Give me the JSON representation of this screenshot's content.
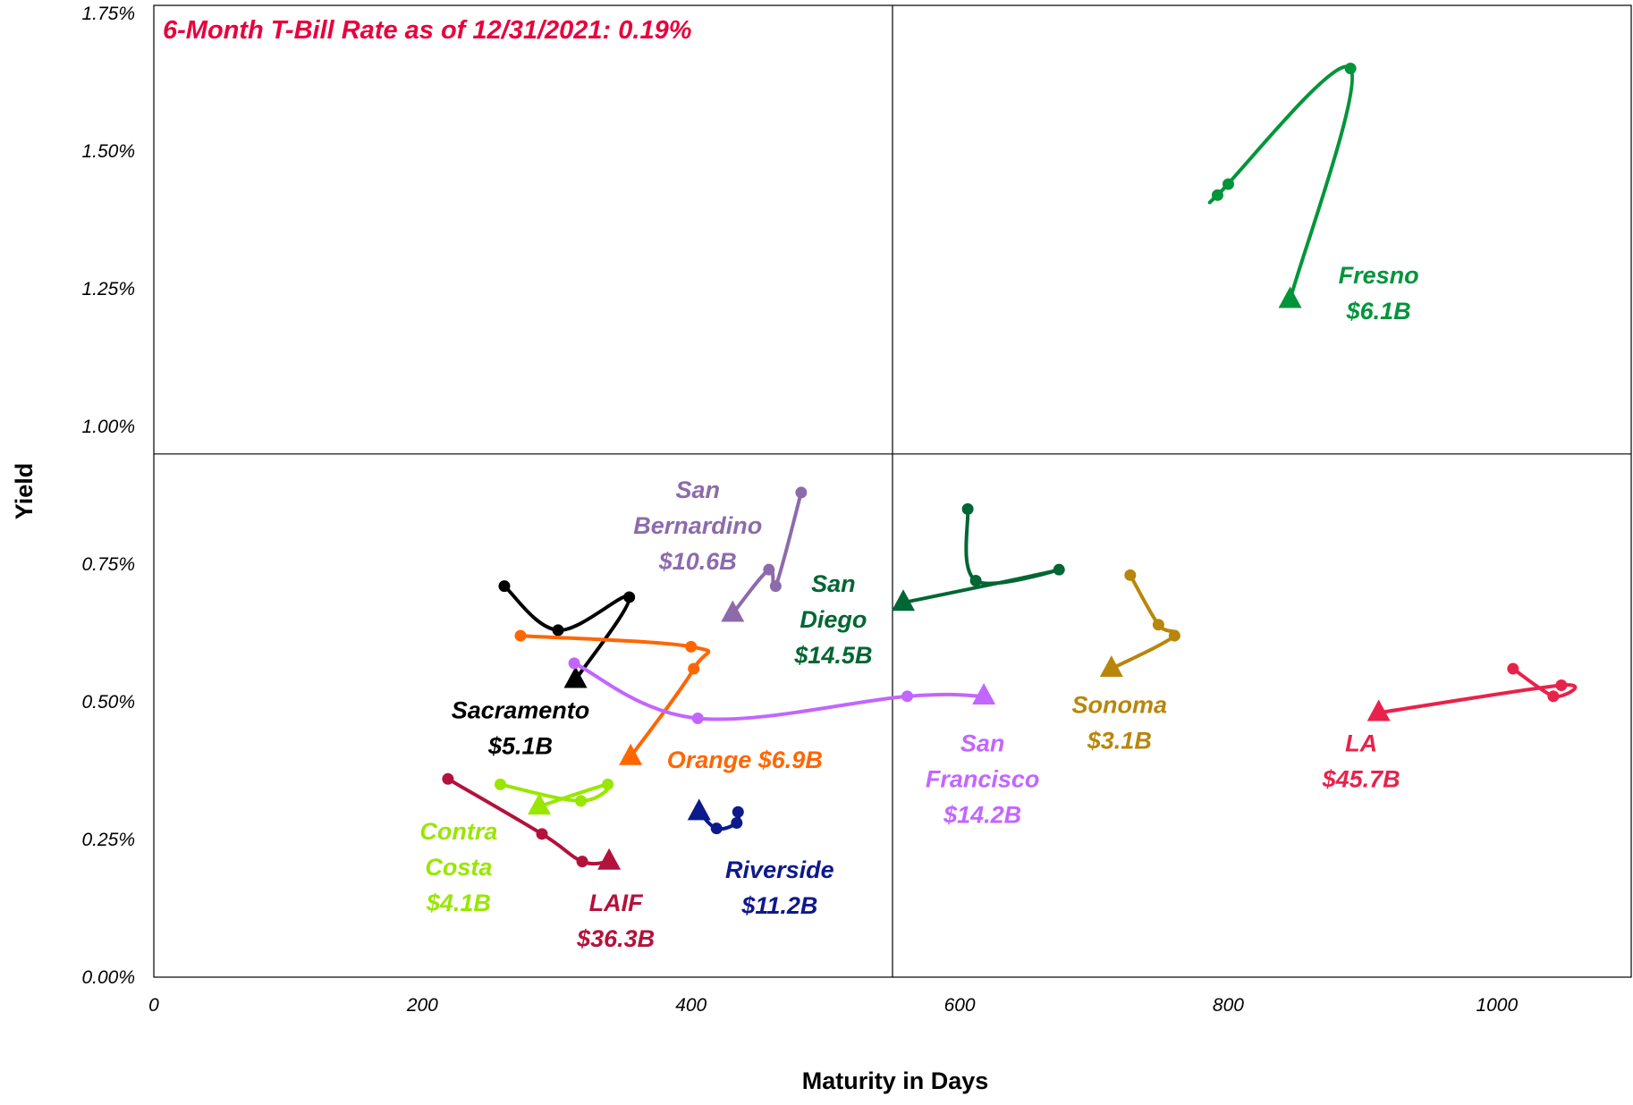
{
  "chart_data": {
    "type": "scatter",
    "title": "",
    "annotation": "6-Month T-Bill Rate as of 12/31/2021: 0.19%",
    "annotation_color": "#e8003c",
    "xlabel": "Maturity in Days",
    "ylabel": "Yield",
    "xlim": [
      0,
      1100
    ],
    "ylim": [
      0,
      1.75
    ],
    "x_ticks": [
      0,
      200,
      400,
      600,
      800,
      1000
    ],
    "x_tick_labels": [
      "0",
      "200",
      "400",
      "600",
      "800",
      "1000"
    ],
    "y_ticks": [
      0,
      0.25,
      0.5,
      0.75,
      1.0,
      1.25,
      1.5,
      1.75
    ],
    "y_tick_labels": [
      "0.00%",
      "0.25%",
      "0.50%",
      "0.75%",
      "1.00%",
      "1.25%",
      "1.50%",
      "1.75%"
    ],
    "quadrant_lines": {
      "x": 550,
      "y": 0.95
    },
    "grid": false,
    "legend": "none",
    "series": [
      {
        "name": "Fresno",
        "amount": "$6.1B",
        "color": "#00953a",
        "label_lines": [
          "Fresno",
          "$6.1B"
        ],
        "label_at": [
          912,
          1.26
        ],
        "points": [
          [
            800,
            1.44
          ],
          [
            792,
            1.42
          ],
          [
            891,
            1.65
          ],
          [
            846,
            1.23
          ]
        ]
      },
      {
        "name": "San Bernardino",
        "amount": "$10.6B",
        "color": "#8c6bab",
        "label_lines": [
          "San",
          "Bernardino",
          "$10.6B"
        ],
        "label_at": [
          405,
          0.87
        ],
        "points": [
          [
            482,
            0.88
          ],
          [
            463,
            0.71
          ],
          [
            458,
            0.74
          ],
          [
            431,
            0.66
          ]
        ]
      },
      {
        "name": "San Diego",
        "amount": "$14.5B",
        "color": "#006633",
        "label_lines": [
          "San",
          "Diego",
          "$14.5B"
        ],
        "label_at": [
          506,
          0.7
        ],
        "points": [
          [
            606,
            0.85
          ],
          [
            612,
            0.72
          ],
          [
            674,
            0.74
          ],
          [
            558,
            0.68
          ]
        ]
      },
      {
        "name": "Sonoma",
        "amount": "$3.1B",
        "color": "#b8860b",
        "label_lines": [
          "Sonoma",
          "$3.1B"
        ],
        "label_at": [
          719,
          0.48
        ],
        "points": [
          [
            727,
            0.73
          ],
          [
            748,
            0.64
          ],
          [
            760,
            0.62
          ],
          [
            713,
            0.56
          ]
        ]
      },
      {
        "name": "LA",
        "amount": "$45.7B",
        "color": "#e8224a",
        "label_lines": [
          "LA",
          "$45.7B"
        ],
        "label_at": [
          899,
          0.41
        ],
        "points": [
          [
            1012,
            0.56
          ],
          [
            1042,
            0.51
          ],
          [
            1048,
            0.53
          ],
          [
            912,
            0.48
          ]
        ]
      },
      {
        "name": "Sacramento",
        "amount": "$5.1B",
        "color": "#000000",
        "label_lines": [
          "Sacramento",
          "$5.1B"
        ],
        "label_at": [
          273,
          0.47
        ],
        "points": [
          [
            261,
            0.71
          ],
          [
            301,
            0.63
          ],
          [
            354,
            0.69
          ],
          [
            314,
            0.54
          ]
        ]
      },
      {
        "name": "Orange",
        "amount": "$6.9B",
        "color": "#ff6600",
        "label_lines": [
          "Orange $6.9B"
        ],
        "label_at": [
          440,
          0.38
        ],
        "points": [
          [
            273,
            0.62
          ],
          [
            400,
            0.6
          ],
          [
            402,
            0.56
          ],
          [
            355,
            0.4
          ]
        ]
      },
      {
        "name": "San Francisco",
        "amount": "$14.2B",
        "color": "#c266ff",
        "label_lines": [
          "San",
          "Francisco",
          "$14.2B"
        ],
        "label_at": [
          617,
          0.41
        ],
        "points": [
          [
            313,
            0.57
          ],
          [
            405,
            0.47
          ],
          [
            561,
            0.51
          ],
          [
            618,
            0.51
          ]
        ]
      },
      {
        "name": "Contra Costa",
        "amount": "$4.1B",
        "color": "#99e600",
        "label_lines": [
          "Contra",
          "Costa",
          "$4.1B"
        ],
        "label_at": [
          227,
          0.25
        ],
        "points": [
          [
            258,
            0.35
          ],
          [
            318,
            0.32
          ],
          [
            338,
            0.35
          ],
          [
            287,
            0.31
          ]
        ]
      },
      {
        "name": "LAIF",
        "amount": "$36.3B",
        "color": "#b3123c",
        "label_lines": [
          "LAIF",
          "$36.3B"
        ],
        "label_at": [
          344,
          0.12
        ],
        "points": [
          [
            219,
            0.36
          ],
          [
            289,
            0.26
          ],
          [
            319,
            0.21
          ],
          [
            339,
            0.21
          ]
        ]
      },
      {
        "name": "Riverside",
        "amount": "$11.2B",
        "color": "#0d1a8c",
        "label_lines": [
          "Riverside",
          "$11.2B"
        ],
        "label_at": [
          466,
          0.18
        ],
        "points": [
          [
            435,
            0.3
          ],
          [
            434,
            0.28
          ],
          [
            419,
            0.27
          ],
          [
            406,
            0.3
          ]
        ]
      }
    ]
  }
}
